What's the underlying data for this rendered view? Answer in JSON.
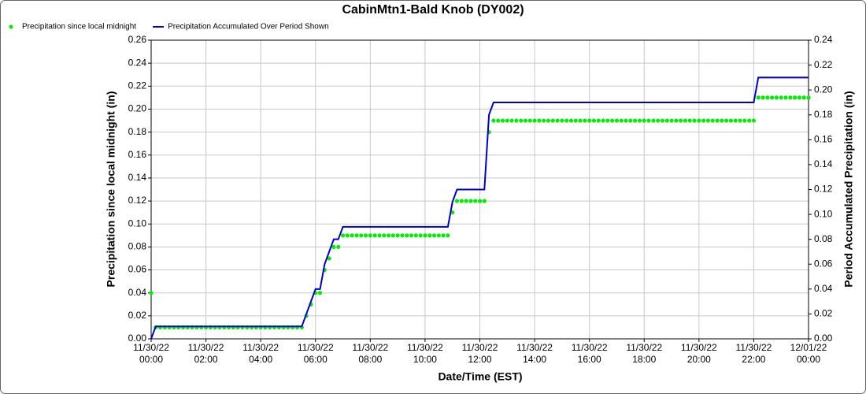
{
  "chart_data": {
    "type": "line",
    "title": "CabinMtn1-Bald Knob (DY002)",
    "x_label": "Date/Time (EST)",
    "y_label": "Precipitation since local midnight (in)",
    "y2_label": "Period Accumulated Precipitation (in)",
    "x": [
      "11/30/22 00:00",
      "11/30/22 00:10",
      "11/30/22 00:20",
      "11/30/22 00:30",
      "11/30/22 00:40",
      "11/30/22 00:50",
      "11/30/22 01:00",
      "11/30/22 01:10",
      "11/30/22 01:20",
      "11/30/22 01:30",
      "11/30/22 01:40",
      "11/30/22 01:50",
      "11/30/22 02:00",
      "11/30/22 02:10",
      "11/30/22 02:20",
      "11/30/22 02:30",
      "11/30/22 02:40",
      "11/30/22 02:50",
      "11/30/22 03:00",
      "11/30/22 03:10",
      "11/30/22 03:20",
      "11/30/22 03:30",
      "11/30/22 03:40",
      "11/30/22 03:50",
      "11/30/22 04:00",
      "11/30/22 04:10",
      "11/30/22 04:20",
      "11/30/22 04:30",
      "11/30/22 04:40",
      "11/30/22 04:50",
      "11/30/22 05:00",
      "11/30/22 05:10",
      "11/30/22 05:20",
      "11/30/22 05:30",
      "11/30/22 05:40",
      "11/30/22 05:50",
      "11/30/22 06:00",
      "11/30/22 06:10",
      "11/30/22 06:20",
      "11/30/22 06:30",
      "11/30/22 06:40",
      "11/30/22 06:50",
      "11/30/22 07:00",
      "11/30/22 07:10",
      "11/30/22 07:20",
      "11/30/22 07:30",
      "11/30/22 07:40",
      "11/30/22 07:50",
      "11/30/22 08:00",
      "11/30/22 08:10",
      "11/30/22 08:20",
      "11/30/22 08:30",
      "11/30/22 08:40",
      "11/30/22 08:50",
      "11/30/22 09:00",
      "11/30/22 09:10",
      "11/30/22 09:20",
      "11/30/22 09:30",
      "11/30/22 09:40",
      "11/30/22 09:50",
      "11/30/22 10:00",
      "11/30/22 10:10",
      "11/30/22 10:20",
      "11/30/22 10:30",
      "11/30/22 10:40",
      "11/30/22 10:50",
      "11/30/22 11:00",
      "11/30/22 11:10",
      "11/30/22 11:20",
      "11/30/22 11:30",
      "11/30/22 11:40",
      "11/30/22 11:50",
      "11/30/22 12:00",
      "11/30/22 12:10",
      "11/30/22 12:20",
      "11/30/22 12:30",
      "11/30/22 12:40",
      "11/30/22 12:50",
      "11/30/22 13:00",
      "11/30/22 13:10",
      "11/30/22 13:20",
      "11/30/22 13:30",
      "11/30/22 13:40",
      "11/30/22 13:50",
      "11/30/22 14:00",
      "11/30/22 14:10",
      "11/30/22 14:20",
      "11/30/22 14:30",
      "11/30/22 14:40",
      "11/30/22 14:50",
      "11/30/22 15:00",
      "11/30/22 15:10",
      "11/30/22 15:20",
      "11/30/22 15:30",
      "11/30/22 15:40",
      "11/30/22 15:50",
      "11/30/22 16:00",
      "11/30/22 16:10",
      "11/30/22 16:20",
      "11/30/22 16:30",
      "11/30/22 16:40",
      "11/30/22 16:50",
      "11/30/22 17:00",
      "11/30/22 17:10",
      "11/30/22 17:20",
      "11/30/22 17:30",
      "11/30/22 17:40",
      "11/30/22 17:50",
      "11/30/22 18:00",
      "11/30/22 18:10",
      "11/30/22 18:20",
      "11/30/22 18:30",
      "11/30/22 18:40",
      "11/30/22 18:50",
      "11/30/22 19:00",
      "11/30/22 19:10",
      "11/30/22 19:20",
      "11/30/22 19:30",
      "11/30/22 19:40",
      "11/30/22 19:50",
      "11/30/22 20:00",
      "11/30/22 20:10",
      "11/30/22 20:20",
      "11/30/22 20:30",
      "11/30/22 20:40",
      "11/30/22 20:50",
      "11/30/22 21:00",
      "11/30/22 21:10",
      "11/30/22 21:20",
      "11/30/22 21:30",
      "11/30/22 21:40",
      "11/30/22 21:50",
      "11/30/22 22:00",
      "11/30/22 22:10",
      "11/30/22 22:20",
      "11/30/22 22:30",
      "11/30/22 22:40",
      "11/30/22 22:50",
      "11/30/22 23:00",
      "11/30/22 23:10",
      "11/30/22 23:20",
      "11/30/22 23:30",
      "11/30/22 23:40",
      "11/30/22 23:50",
      "12/01/22 00:00"
    ],
    "series": [
      {
        "name": "Precipitation since local midnight",
        "color": "#00ee00",
        "style": "dots",
        "values": [
          0.04,
          0.01,
          0.01,
          0.01,
          0.01,
          0.01,
          0.01,
          0.01,
          0.01,
          0.01,
          0.01,
          0.01,
          0.01,
          0.01,
          0.01,
          0.01,
          0.01,
          0.01,
          0.01,
          0.01,
          0.01,
          0.01,
          0.01,
          0.01,
          0.01,
          0.01,
          0.01,
          0.01,
          0.01,
          0.01,
          0.01,
          0.01,
          0.01,
          0.01,
          0.02,
          0.03,
          0.04,
          0.04,
          0.06,
          0.07,
          0.08,
          0.08,
          0.09,
          0.09,
          0.09,
          0.09,
          0.09,
          0.09,
          0.09,
          0.09,
          0.09,
          0.09,
          0.09,
          0.09,
          0.09,
          0.09,
          0.09,
          0.09,
          0.09,
          0.09,
          0.09,
          0.09,
          0.09,
          0.09,
          0.09,
          0.09,
          0.11,
          0.12,
          0.12,
          0.12,
          0.12,
          0.12,
          0.12,
          0.12,
          0.18,
          0.19,
          0.19,
          0.19,
          0.19,
          0.19,
          0.19,
          0.19,
          0.19,
          0.19,
          0.19,
          0.19,
          0.19,
          0.19,
          0.19,
          0.19,
          0.19,
          0.19,
          0.19,
          0.19,
          0.19,
          0.19,
          0.19,
          0.19,
          0.19,
          0.19,
          0.19,
          0.19,
          0.19,
          0.19,
          0.19,
          0.19,
          0.19,
          0.19,
          0.19,
          0.19,
          0.19,
          0.19,
          0.19,
          0.19,
          0.19,
          0.19,
          0.19,
          0.19,
          0.19,
          0.19,
          0.19,
          0.19,
          0.19,
          0.19,
          0.19,
          0.19,
          0.19,
          0.19,
          0.19,
          0.19,
          0.19,
          0.19,
          0.19,
          0.21,
          0.21,
          0.21,
          0.21,
          0.21,
          0.21,
          0.21,
          0.21,
          0.21,
          0.21,
          0.21,
          0.21
        ]
      },
      {
        "name": "Precipitation Accumulated Over Period Shown",
        "color": "#0000cc",
        "style": "line",
        "axis": "y2",
        "values": [
          0,
          0.01,
          0.01,
          0.01,
          0.01,
          0.01,
          0.01,
          0.01,
          0.01,
          0.01,
          0.01,
          0.01,
          0.01,
          0.01,
          0.01,
          0.01,
          0.01,
          0.01,
          0.01,
          0.01,
          0.01,
          0.01,
          0.01,
          0.01,
          0.01,
          0.01,
          0.01,
          0.01,
          0.01,
          0.01,
          0.01,
          0.01,
          0.01,
          0.01,
          0.02,
          0.03,
          0.04,
          0.04,
          0.06,
          0.07,
          0.08,
          0.08,
          0.09,
          0.09,
          0.09,
          0.09,
          0.09,
          0.09,
          0.09,
          0.09,
          0.09,
          0.09,
          0.09,
          0.09,
          0.09,
          0.09,
          0.09,
          0.09,
          0.09,
          0.09,
          0.09,
          0.09,
          0.09,
          0.09,
          0.09,
          0.09,
          0.11,
          0.12,
          0.12,
          0.12,
          0.12,
          0.12,
          0.12,
          0.12,
          0.18,
          0.19,
          0.19,
          0.19,
          0.19,
          0.19,
          0.19,
          0.19,
          0.19,
          0.19,
          0.19,
          0.19,
          0.19,
          0.19,
          0.19,
          0.19,
          0.19,
          0.19,
          0.19,
          0.19,
          0.19,
          0.19,
          0.19,
          0.19,
          0.19,
          0.19,
          0.19,
          0.19,
          0.19,
          0.19,
          0.19,
          0.19,
          0.19,
          0.19,
          0.19,
          0.19,
          0.19,
          0.19,
          0.19,
          0.19,
          0.19,
          0.19,
          0.19,
          0.19,
          0.19,
          0.19,
          0.19,
          0.19,
          0.19,
          0.19,
          0.19,
          0.19,
          0.19,
          0.19,
          0.19,
          0.19,
          0.19,
          0.19,
          0.19,
          0.21,
          0.21,
          0.21,
          0.21,
          0.21,
          0.21,
          0.21,
          0.21,
          0.21,
          0.21,
          0.21,
          0.21
        ]
      }
    ],
    "xlim": [
      "11/30/22 00:00",
      "12/01/22 00:00"
    ],
    "xticks": [
      "11/30/22 00:00",
      "11/30/22 02:00",
      "11/30/22 04:00",
      "11/30/22 06:00",
      "11/30/22 08:00",
      "11/30/22 10:00",
      "11/30/22 12:00",
      "11/30/22 14:00",
      "11/30/22 16:00",
      "11/30/22 18:00",
      "11/30/22 20:00",
      "11/30/22 22:00",
      "12/01/22 00:00"
    ],
    "ylim": [
      0,
      0.26
    ],
    "yticks": [
      {
        "value": 0,
        "label": "0.00"
      },
      {
        "value": 0.02,
        "label": "0.02"
      },
      {
        "value": 0.04,
        "label": "0.04"
      },
      {
        "value": 0.06,
        "label": "0.06"
      },
      {
        "value": 0.08,
        "label": "0.08"
      },
      {
        "value": 0.1,
        "label": "0.10"
      },
      {
        "value": 0.12,
        "label": "0.12"
      },
      {
        "value": 0.14,
        "label": "0.14"
      },
      {
        "value": 0.16,
        "label": "0.16"
      },
      {
        "value": 0.18,
        "label": "0.18"
      },
      {
        "value": 0.2,
        "label": "0.20"
      },
      {
        "value": 0.22,
        "label": "0.22"
      },
      {
        "value": 0.24,
        "label": "0.24"
      },
      {
        "value": 0.26,
        "label": "0.26"
      }
    ],
    "y2lim": [
      0,
      0.24
    ],
    "y2ticks": [
      {
        "value": 0,
        "label": "0.00"
      },
      {
        "value": 0.02,
        "label": "0.02"
      },
      {
        "value": 0.04,
        "label": "0.04"
      },
      {
        "value": 0.06,
        "label": "0.06"
      },
      {
        "value": 0.08,
        "label": "0.08"
      },
      {
        "value": 0.1,
        "label": "0.10"
      },
      {
        "value": 0.12,
        "label": "0.12"
      },
      {
        "value": 0.14,
        "label": "0.14"
      },
      {
        "value": 0.16,
        "label": "0.16"
      },
      {
        "value": 0.18,
        "label": "0.18"
      },
      {
        "value": 0.2,
        "label": "0.20"
      },
      {
        "value": 0.22,
        "label": "0.22"
      },
      {
        "value": 0.24,
        "label": "0.24"
      }
    ],
    "grid": true,
    "legend": "top-left"
  }
}
